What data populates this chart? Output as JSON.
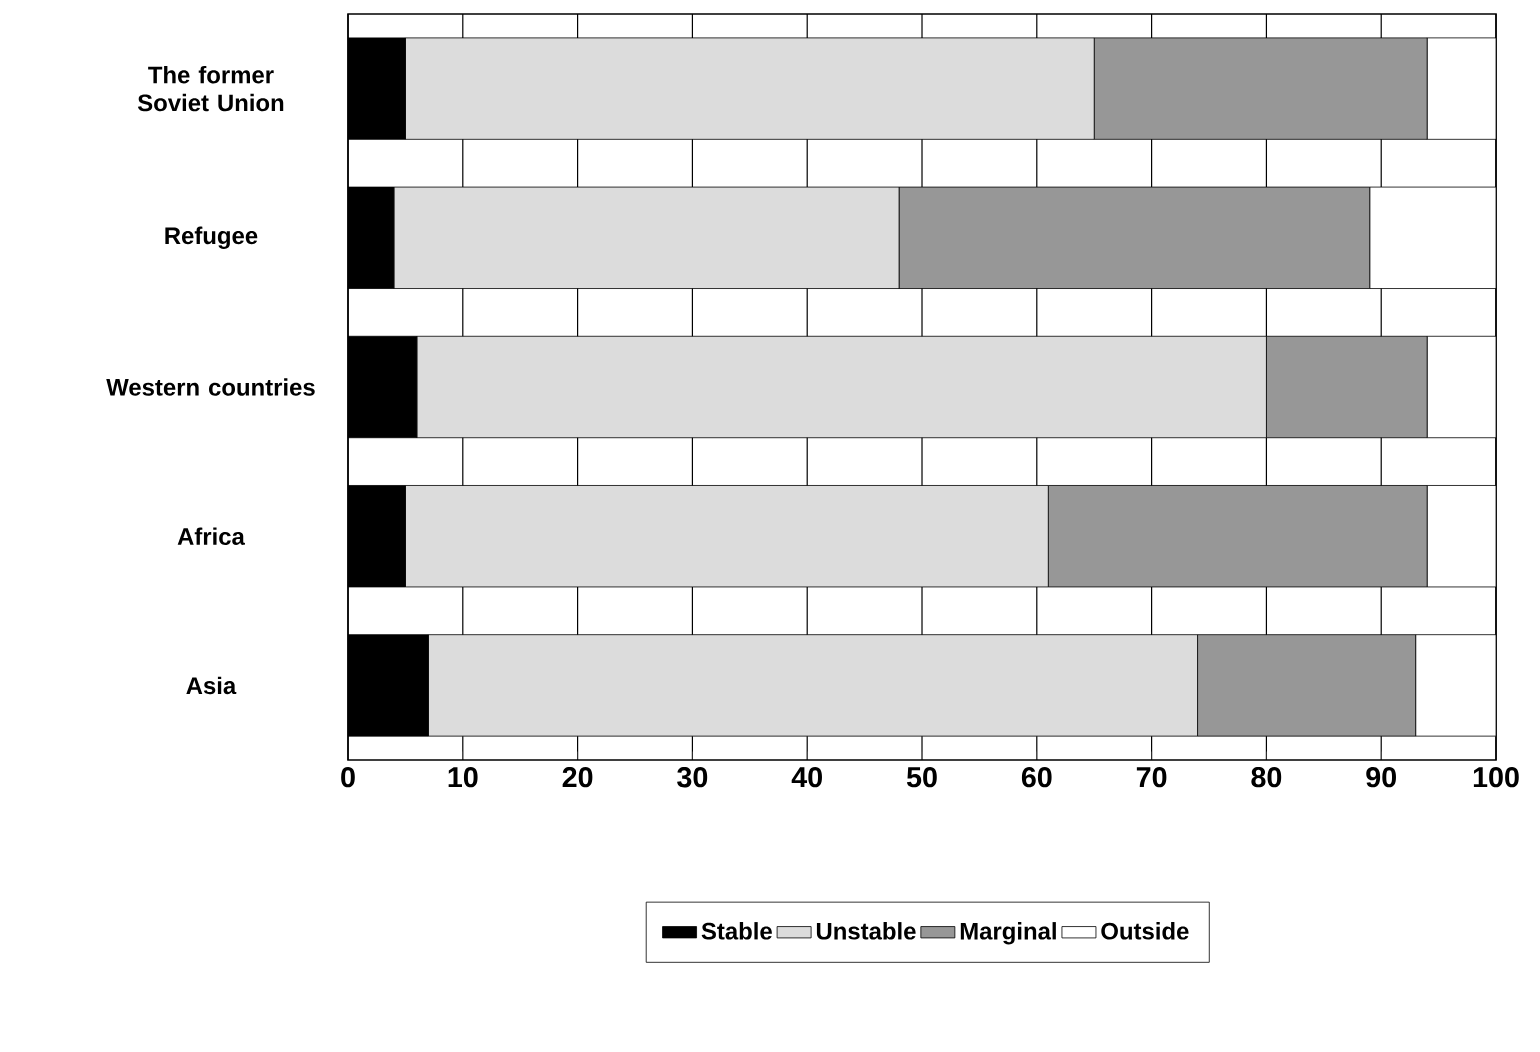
{
  "chart_data": {
    "type": "bar",
    "orientation": "horizontal",
    "stacked": true,
    "categories": [
      "The former Soviet Union",
      "Refugee",
      "Western countries",
      "Africa",
      "Asia"
    ],
    "series": [
      {
        "name": "Stable",
        "color": "#000000",
        "values": [
          5,
          4,
          6,
          5,
          7
        ]
      },
      {
        "name": "Unstable",
        "color": "#dcdcdc",
        "values": [
          60,
          44,
          74,
          56,
          67
        ]
      },
      {
        "name": "Marginal",
        "color": "#979797",
        "values": [
          29,
          41,
          14,
          33,
          19
        ]
      },
      {
        "name": "Outside",
        "color": "#ffffff",
        "values": [
          6,
          11,
          6,
          6,
          7
        ]
      }
    ],
    "xlim": [
      0,
      100
    ],
    "xticks": [
      0,
      10,
      20,
      30,
      40,
      50,
      60,
      70,
      80,
      90,
      100
    ],
    "grid": "x",
    "legend": "bottom"
  }
}
